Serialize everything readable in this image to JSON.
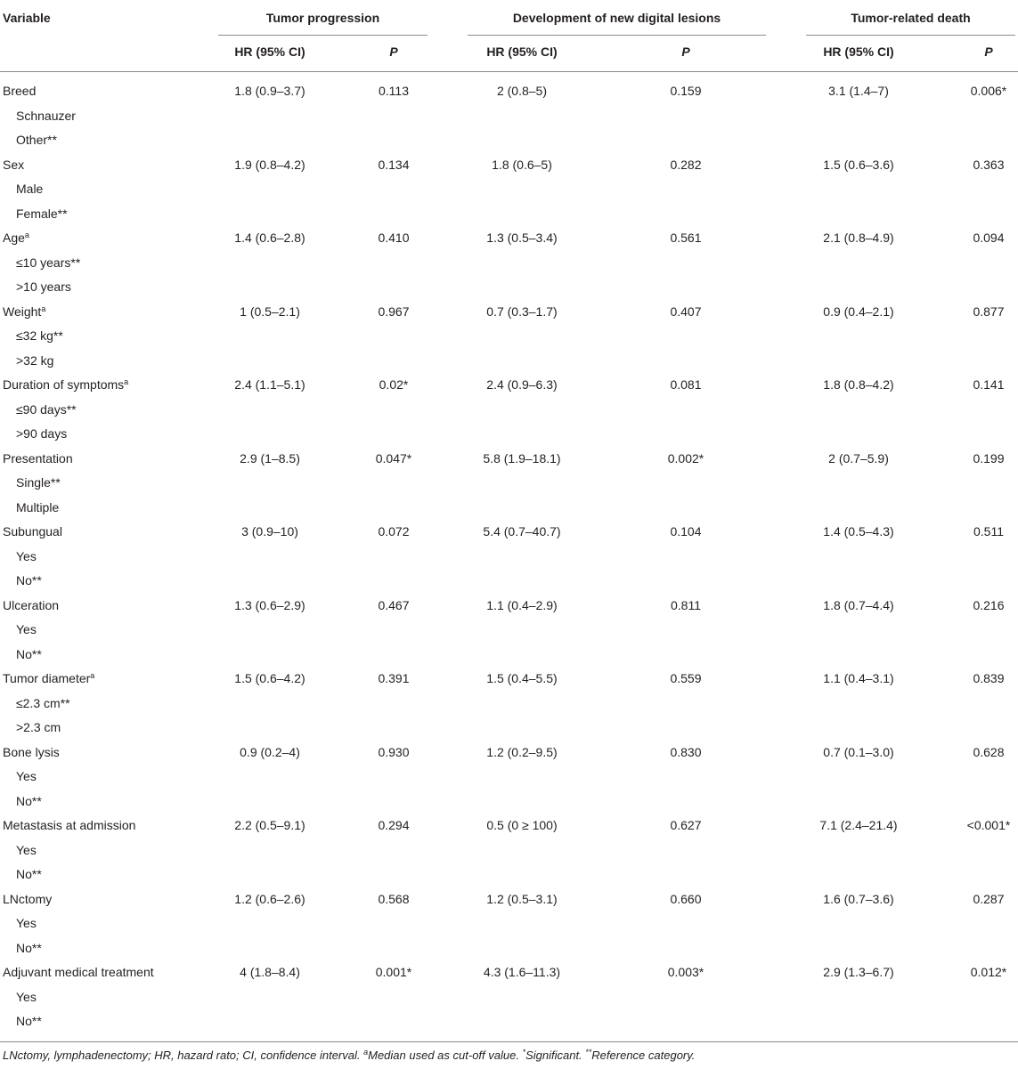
{
  "header": {
    "variable": "Variable",
    "groups": [
      "Tumor progression",
      "Development of new digital lesions",
      "Tumor-related death"
    ],
    "hr_label": "HR (95% CI)",
    "p_label": "P"
  },
  "rows": [
    {
      "label": "Breed",
      "sup": "",
      "values": [
        "1.8 (0.9–3.7)",
        "0.113",
        "2 (0.8–5)",
        "0.159",
        "3.1 (1.4–7)",
        "0.006*"
      ],
      "subs": [
        "Schnauzer",
        "Other**"
      ]
    },
    {
      "label": "Sex",
      "sup": "",
      "values": [
        "1.9 (0.8–4.2)",
        "0.134",
        "1.8 (0.6–5)",
        "0.282",
        "1.5 (0.6–3.6)",
        "0.363"
      ],
      "subs": [
        "Male",
        "Female**"
      ]
    },
    {
      "label": "Age",
      "sup": "a",
      "values": [
        "1.4 (0.6–2.8)",
        "0.410",
        "1.3 (0.5–3.4)",
        "0.561",
        "2.1 (0.8–4.9)",
        "0.094"
      ],
      "subs": [
        "≤10 years**",
        ">10 years"
      ]
    },
    {
      "label": "Weight",
      "sup": "a",
      "values": [
        "1 (0.5–2.1)",
        "0.967",
        "0.7 (0.3–1.7)",
        "0.407",
        "0.9 (0.4–2.1)",
        "0.877"
      ],
      "subs": [
        "≤32 kg**",
        ">32 kg"
      ]
    },
    {
      "label": "Duration of symptoms",
      "sup": "a",
      "values": [
        "2.4 (1.1–5.1)",
        "0.02*",
        "2.4 (0.9–6.3)",
        "0.081",
        "1.8 (0.8–4.2)",
        "0.141"
      ],
      "subs": [
        "≤90 days**",
        ">90 days"
      ]
    },
    {
      "label": "Presentation",
      "sup": "",
      "values": [
        "2.9 (1–8.5)",
        "0.047*",
        "5.8 (1.9–18.1)",
        "0.002*",
        "2 (0.7–5.9)",
        "0.199"
      ],
      "subs": [
        "Single**",
        "Multiple"
      ]
    },
    {
      "label": "Subungual",
      "sup": "",
      "values": [
        "3 (0.9–10)",
        "0.072",
        "5.4 (0.7–40.7)",
        "0.104",
        "1.4 (0.5–4.3)",
        "0.511"
      ],
      "subs": [
        "Yes",
        "No**"
      ]
    },
    {
      "label": "Ulceration",
      "sup": "",
      "values": [
        "1.3 (0.6–2.9)",
        "0.467",
        "1.1 (0.4–2.9)",
        "0.811",
        "1.8 (0.7–4.4)",
        "0.216"
      ],
      "subs": [
        "Yes",
        "No**"
      ]
    },
    {
      "label": "Tumor diameter",
      "sup": "a",
      "values": [
        "1.5 (0.6–4.2)",
        "0.391",
        "1.5 (0.4–5.5)",
        "0.559",
        "1.1 (0.4–3.1)",
        "0.839"
      ],
      "subs": [
        "≤2.3 cm**",
        ">2.3 cm"
      ]
    },
    {
      "label": "Bone lysis",
      "sup": "",
      "values": [
        "0.9 (0.2–4)",
        "0.930",
        "1.2 (0.2–9.5)",
        "0.830",
        "0.7 (0.1–3.0)",
        "0.628"
      ],
      "subs": [
        "Yes",
        "No**"
      ]
    },
    {
      "label": "Metastasis at admission",
      "sup": "",
      "values": [
        "2.2 (0.5–9.1)",
        "0.294",
        "0.5 (0 ≥ 100)",
        "0.627",
        "7.1 (2.4–21.4)",
        "<0.001*"
      ],
      "subs": [
        "Yes",
        "No**"
      ]
    },
    {
      "label": "LNctomy",
      "sup": "",
      "values": [
        "1.2 (0.6–2.6)",
        "0.568",
        "1.2 (0.5–3.1)",
        "0.660",
        "1.6 (0.7–3.6)",
        "0.287"
      ],
      "subs": [
        "Yes",
        "No**"
      ]
    },
    {
      "label": "Adjuvant medical treatment",
      "sup": "",
      "values": [
        "4 (1.8–8.4)",
        "0.001*",
        "4.3 (1.6–11.3)",
        "0.003*",
        "2.9 (1.3–6.7)",
        "0.012*"
      ],
      "subs": [
        "Yes",
        "No**"
      ]
    }
  ],
  "footnote": {
    "abbrev": "LNctomy, lymphadenectomy; HR, hazard rato; CI, confidence interval. ",
    "a_mark": "a",
    "a_text": "Median used as cut-off value. ",
    "s_mark": "*",
    "s_text": "Significant. ",
    "ss_mark": "**",
    "ss_text": "Reference category."
  }
}
